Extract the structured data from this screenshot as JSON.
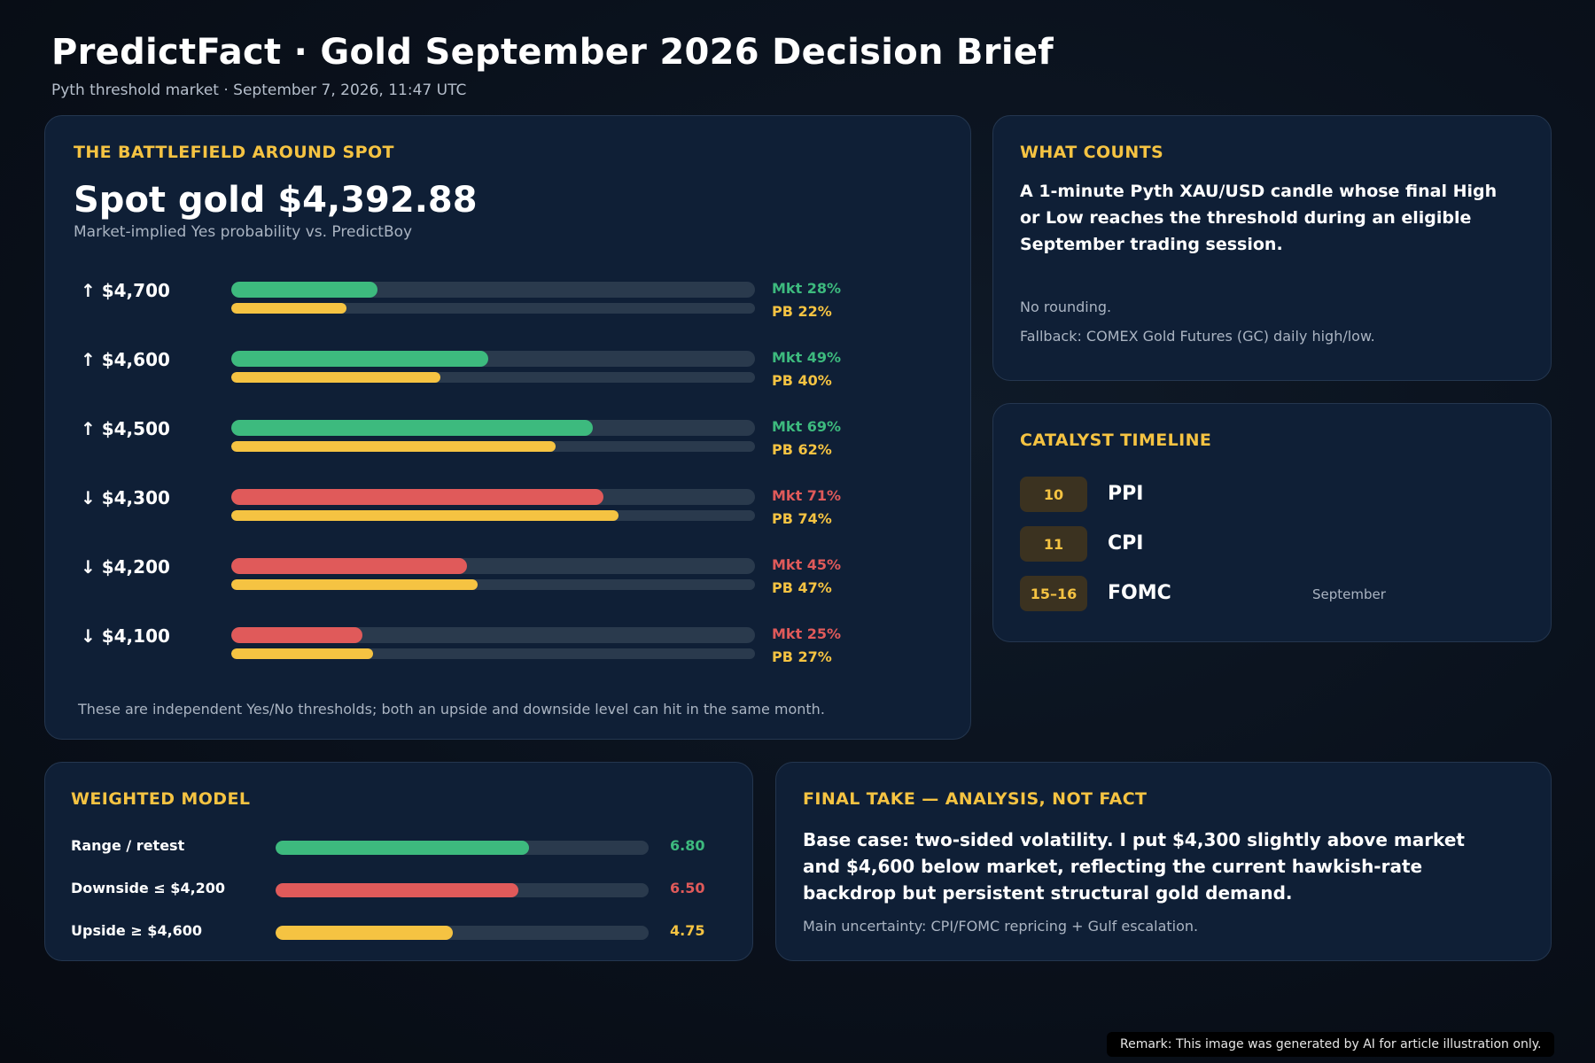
{
  "header": {
    "title": "PredictFact · Gold September 2026 Decision Brief",
    "subtitle": "Pyth threshold market · September 7, 2026, 11:47 UTC"
  },
  "colors": {
    "accent": "#f5c342",
    "up": "#3dba7e",
    "down": "#e05a5a",
    "card_bg": "#0f1f36"
  },
  "battlefield": {
    "heading": "THE BATTLEFIELD AROUND SPOT",
    "spot": "Spot gold $4,392.88",
    "caption": "Market-implied Yes probability vs. PredictBoy",
    "footnote": "These are independent Yes/No thresholds; both an upside and downside level can hit in the same month.",
    "thresholds": [
      {
        "label": "↑ $4,700",
        "direction": "up",
        "mkt": 28,
        "pb": 22,
        "mkt_label": "Mkt 28%",
        "pb_label": "PB 22%"
      },
      {
        "label": "↑ $4,600",
        "direction": "up",
        "mkt": 49,
        "pb": 40,
        "mkt_label": "Mkt 49%",
        "pb_label": "PB 40%"
      },
      {
        "label": "↑ $4,500",
        "direction": "up",
        "mkt": 69,
        "pb": 62,
        "mkt_label": "Mkt 69%",
        "pb_label": "PB 62%"
      },
      {
        "label": "↓ $4,300",
        "direction": "down",
        "mkt": 71,
        "pb": 74,
        "mkt_label": "Mkt 71%",
        "pb_label": "PB 74%"
      },
      {
        "label": "↓ $4,200",
        "direction": "down",
        "mkt": 45,
        "pb": 47,
        "mkt_label": "Mkt 45%",
        "pb_label": "PB 47%"
      },
      {
        "label": "↓ $4,100",
        "direction": "down",
        "mkt": 25,
        "pb": 27,
        "mkt_label": "Mkt 25%",
        "pb_label": "PB 27%"
      }
    ]
  },
  "what_counts": {
    "heading": "WHAT COUNTS",
    "body": "A 1-minute Pyth XAU/USD candle whose final High or Low reaches the threshold during an eligible September trading session.",
    "note1": "No rounding.",
    "note2": "Fallback: COMEX Gold Futures (GC) daily high/low."
  },
  "catalyst": {
    "heading": "CATALYST TIMELINE",
    "events": [
      {
        "date": "10",
        "name": "PPI",
        "note": ""
      },
      {
        "date": "11",
        "name": "CPI",
        "note": ""
      },
      {
        "date": "15–16",
        "name": "FOMC",
        "note": "September"
      }
    ]
  },
  "weighted_model": {
    "heading": "WEIGHTED MODEL",
    "scale_max": 10,
    "rows": [
      {
        "label": "Range / retest",
        "value": 6.8,
        "value_label": "6.80",
        "color": "#3dba7e"
      },
      {
        "label": "Downside ≤ $4,200",
        "value": 6.5,
        "value_label": "6.50",
        "color": "#e05a5a"
      },
      {
        "label": "Upside ≥ $4,600",
        "value": 4.75,
        "value_label": "4.75",
        "color": "#f5c342"
      }
    ]
  },
  "final_take": {
    "heading": "FINAL TAKE — ANALYSIS, NOT FACT",
    "body": "Base case: two-sided volatility. I put $4,300 slightly above market and $4,600 below market, reflecting the current hawkish-rate backdrop but persistent structural gold demand.",
    "note": "Main uncertainty: CPI/FOMC repricing + Gulf escalation."
  },
  "remark": "Remark: This image was generated by AI for article illustration only."
}
